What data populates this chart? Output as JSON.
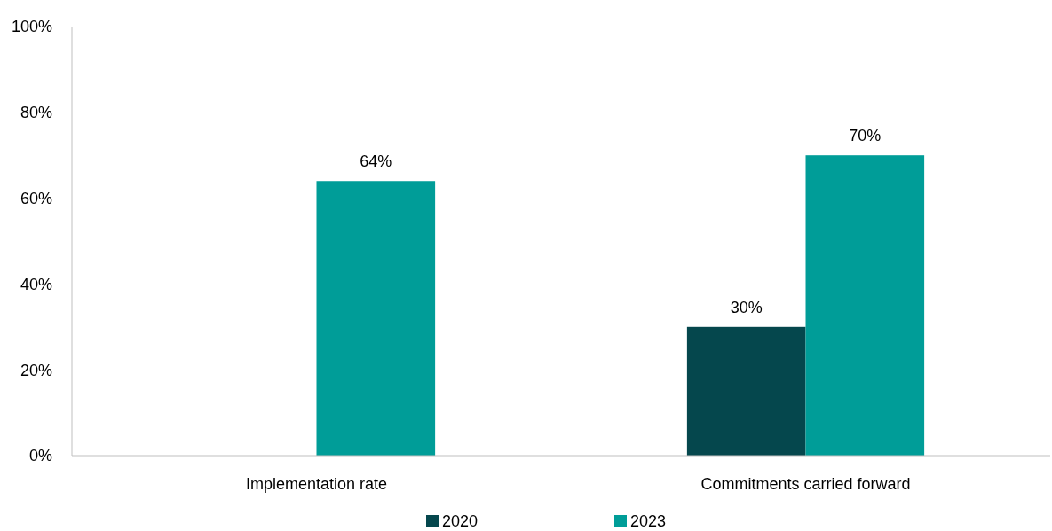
{
  "chart_data": {
    "type": "bar",
    "categories": [
      "Implementation rate",
      "Commitments carried forward"
    ],
    "series": [
      {
        "name": "2020",
        "color": "#05474d",
        "values": [
          null,
          30
        ],
        "value_labels": [
          null,
          "30%"
        ]
      },
      {
        "name": "2023",
        "color": "#009d98",
        "values": [
          64,
          70
        ],
        "value_labels": [
          "64%",
          "70%"
        ]
      }
    ],
    "ylim": [
      0,
      100
    ],
    "yticks": [
      {
        "value": 0,
        "label": "0%"
      },
      {
        "value": 20,
        "label": "20%"
      },
      {
        "value": 40,
        "label": "40%"
      },
      {
        "value": 60,
        "label": "60%"
      },
      {
        "value": 80,
        "label": "80%"
      },
      {
        "value": 100,
        "label": "100%"
      }
    ],
    "grid": false,
    "legend": "bottom"
  }
}
